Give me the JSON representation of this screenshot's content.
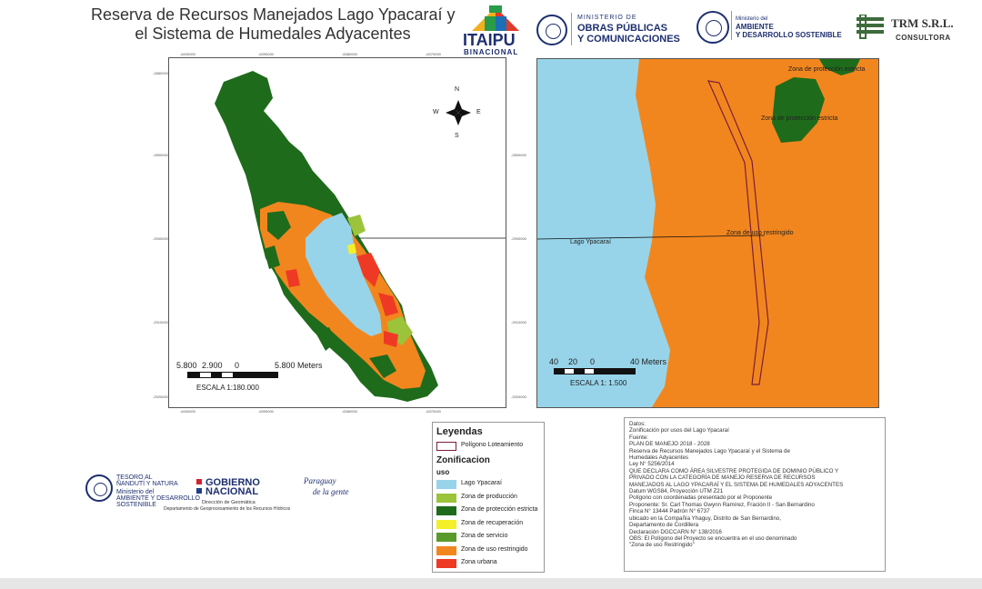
{
  "title": {
    "line1": "Reserva de Recursos Manejados Lago Ypacaraí y",
    "line2": "el Sistema de Humedales Adyacentes"
  },
  "logos": {
    "itaipu_name": "ITAIPU",
    "itaipu_sub": "BINACIONAL",
    "mopc_line1": "MINISTERIO DE",
    "mopc_line2": "OBRAS PÚBLICAS",
    "mopc_line3": "Y COMUNICACIONES",
    "mades_line1": "Ministerio del",
    "mades_line2": "AMBIENTE",
    "mades_line3": "Y DESARROLLO SOSTENIBLE",
    "trm_name": "TRM S.R.L.",
    "trm_sub": "CONSULTORA"
  },
  "left_map": {
    "compass": {
      "n": "N",
      "s": "S",
      "e": "E",
      "w": "W"
    },
    "top_ticks": [
      "-6400000",
      "-6390000",
      "-6380000",
      "-6370000"
    ],
    "bottom_ticks": [
      "-6400000",
      "-6390000",
      "-6380000",
      "-6370000"
    ],
    "left_ticks": [
      "-2880000",
      "-2890000",
      "-2900000",
      "-2910000",
      "-2920000"
    ],
    "right_ticks": [
      "-2890000",
      "-2900000",
      "-2910000",
      "-2920000"
    ],
    "scale_labels": [
      "5.800",
      "2.900",
      "0",
      "5.800 Meters"
    ],
    "scale_text": "ESCALA 1:180.000"
  },
  "right_map": {
    "labels": {
      "zona_estricta_1": "Zona de protección estricta",
      "zona_estricta_2": "Zona de protección estricta",
      "lago": "Lago Ypacaraí",
      "zona_restringido": "Zona de uso restringido"
    },
    "scale_labels": [
      "40",
      "20",
      "0",
      "40 Meters"
    ],
    "scale_text": "ESCALA 1: 1.500"
  },
  "legend": {
    "title": "Leyendas",
    "poligono": "Polígono Loteamiento",
    "zonificacion": "Zonificacion",
    "uso": "uso",
    "items": [
      {
        "label": "Lago Ypacaraí",
        "color": "#97d4ea"
      },
      {
        "label": "Zona de producción",
        "color": "#9bc43a"
      },
      {
        "label": "Zona de protección estricta",
        "color": "#1f6b1c"
      },
      {
        "label": "Zona de recuperación",
        "color": "#f3f02a"
      },
      {
        "label": "Zona de servicio",
        "color": "#5a9a2a"
      },
      {
        "label": "Zona de uso restringido",
        "color": "#f2861e"
      },
      {
        "label": "Zona urbana",
        "color": "#ee3a24"
      }
    ]
  },
  "info": {
    "lines": [
      "Datos:",
      "Zonificación por usos del Lago Ypacaraí",
      "Fuente:",
      "PLAN DE MANEJO 2018 - 2028",
      "Reserva de Recursos Manejados Lago Ypacaraí y el Sistema de",
      "Humedales Adyacentes",
      "Ley N° 5256/2014",
      "QUE DECLARA COMO ÁREA SILVESTRE PROTEGIDA DE DOMINIO PÚBLICO Y",
      "PRIVADO CON LA CATEGORÍA DE MANEJO RESERVA DE RECURSOS",
      "MANEJADOS AL LAGO YPACARAÍ Y EL SISTEMA DE HUMEDALES ADYACENTES",
      "Datum WGS84, Proyección UTM Z21",
      "Polígono con coordenadas presentado por el Proponente",
      "Proponente: Sr. Carl Thomas Gwynn Ramírez, Fración II - San Bernardino",
      "Finca N° 13444 Padrón N° 6737",
      "ubicado en la Compañía Yhaguy, Distrito de San Bernardino,",
      "Departamento de Cordillera",
      "Declaración DGCCARN N° 138/2016",
      "OBS: El Polígono del Proyecto se encuentra en el uso denominado",
      "\"Zona de uso Restringido\""
    ]
  },
  "footer": {
    "tesapy_line1": "TESORO AL",
    "tesapy_line2": "ÑANDUTÍ Y NATURA",
    "mades_line1": "Ministerio del",
    "mades_line2": "AMBIENTE Y DESARROLLO",
    "mades_line3": "SOSTENIBLE",
    "gobierno_line1": "GOBIERNO",
    "gobierno_line2": "NACIONAL",
    "geomatica_line1": "Dirección de Geomática",
    "geomatica_line2": "Departamento de Geoprocesamiento de los Recursos Hídricos",
    "slogan_line1": "Paraguay",
    "slogan_line2": "de la gente"
  }
}
